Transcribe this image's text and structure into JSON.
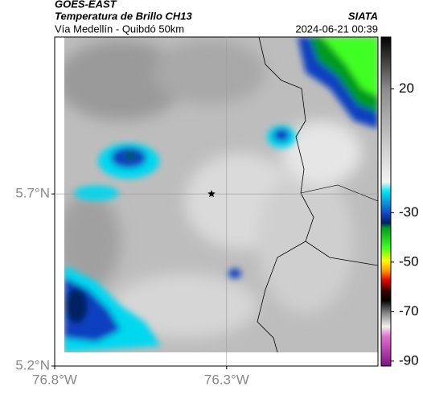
{
  "header": {
    "satellite": "GOES-EAST",
    "title": "Temperatura de Brillo CH13",
    "subtitle": "Vía Medellín - Quibdó 50km",
    "source": "SIATA",
    "datetime": "2024-06-21 00:39"
  },
  "map": {
    "xlim": [
      -76.8,
      -75.86
    ],
    "ylim": [
      5.2,
      6.156
    ],
    "xticks": [
      {
        "value": -76.8,
        "label": "76.8°W"
      },
      {
        "value": -76.3,
        "label": "76.3°W"
      }
    ],
    "yticks": [
      {
        "value": 5.7,
        "label": "5.7°N"
      },
      {
        "value": 5.2,
        "label": "5.2°N"
      }
    ],
    "marker": {
      "lon": -76.344,
      "lat": 5.7
    }
  },
  "colorbar": {
    "lim": [
      -92,
      41
    ],
    "ticks": [
      20,
      -30,
      -50,
      -70,
      -90
    ]
  }
}
